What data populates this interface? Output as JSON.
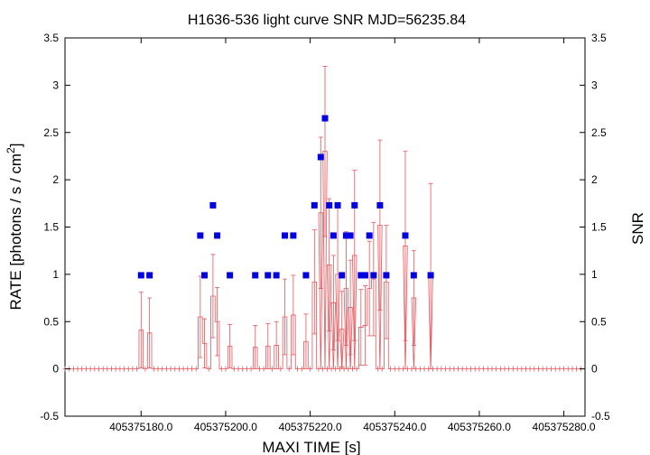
{
  "chart_data": {
    "type": "scatter",
    "title": "H1636-536 light curve  SNR MJD=56235.84",
    "xlabel": "MAXI TIME [s]",
    "ylabel_main": "RATE [photons / s / cm",
    "ylabel_sup": "2",
    "ylabel_close": "]",
    "y2label": "SNR",
    "xlim": [
      405375162,
      405375285
    ],
    "ylim": [
      -0.5,
      3.5
    ],
    "y2lim": [
      -0.5,
      3.5
    ],
    "x_ticks": [
      405375180,
      405375200,
      405375220,
      405375240,
      405375260,
      405375280
    ],
    "x_tick_labels": [
      "405375180.0",
      "405375200.0",
      "405375220.0",
      "405375240.0",
      "405375260.0",
      "405375280.0"
    ],
    "y_ticks": [
      -0.5,
      0,
      0.5,
      1,
      1.5,
      2,
      2.5,
      3,
      3.5
    ],
    "y_tick_labels": [
      "-0.5",
      "0",
      "0.5",
      "1",
      "1.5",
      "2",
      "2.5",
      "3",
      "3.5"
    ],
    "y2_tick_labels": [
      "-0.5",
      "0",
      "0.5",
      "1",
      "1.5",
      "2",
      "2.5",
      "3",
      "3.5"
    ],
    "grid": false,
    "rate_series": {
      "color": "#e8545a",
      "bin_width": 1,
      "x_start": 405375162,
      "x_end": 405375284,
      "nonzero_points": [
        {
          "x": 405375180.0,
          "y": 0.41,
          "err": 0.4
        },
        {
          "x": 405375182.0,
          "y": 0.38,
          "err": 0.37
        },
        {
          "x": 405375194.0,
          "y": 0.55,
          "err": 0.43
        },
        {
          "x": 405375195.0,
          "y": 0.27,
          "err": 0.26
        },
        {
          "x": 405375197.0,
          "y": 0.77,
          "err": 0.44
        },
        {
          "x": 405375198.0,
          "y": 0.5,
          "err": 0.36
        },
        {
          "x": 405375201.0,
          "y": 0.24,
          "err": 0.23
        },
        {
          "x": 405375207.0,
          "y": 0.23,
          "err": 0.23
        },
        {
          "x": 405375210.0,
          "y": 0.24,
          "err": 0.24
        },
        {
          "x": 405375212.0,
          "y": 0.25,
          "err": 0.25
        },
        {
          "x": 405375214.0,
          "y": 0.55,
          "err": 0.4
        },
        {
          "x": 405375216.0,
          "y": 0.57,
          "err": 0.42
        },
        {
          "x": 405375219.0,
          "y": 0.29,
          "err": 0.29
        },
        {
          "x": 405375221.0,
          "y": 0.92,
          "err": 0.55
        },
        {
          "x": 405375222.5,
          "y": 1.65,
          "err": 0.8
        },
        {
          "x": 405375223.5,
          "y": 2.3,
          "err": 0.9
        },
        {
          "x": 405375224.5,
          "y": 1.1,
          "err": 0.7
        },
        {
          "x": 405375225.5,
          "y": 0.7,
          "err": 0.5
        },
        {
          "x": 405375226.5,
          "y": 1.0,
          "err": 0.7
        },
        {
          "x": 405375227.5,
          "y": 0.42,
          "err": 0.4
        },
        {
          "x": 405375228.5,
          "y": 0.85,
          "err": 0.6
        },
        {
          "x": 405375229.5,
          "y": 0.65,
          "err": 0.5
        },
        {
          "x": 405375230.5,
          "y": 1.2,
          "err": 0.9
        },
        {
          "x": 405375232.0,
          "y": 0.44,
          "err": 0.4
        },
        {
          "x": 405375233.0,
          "y": 0.46,
          "err": 0.42
        },
        {
          "x": 405375234.0,
          "y": 0.85,
          "err": 0.5
        },
        {
          "x": 405375235.0,
          "y": 0.95,
          "err": 0.6
        },
        {
          "x": 405375236.5,
          "y": 1.52,
          "err": 0.9
        },
        {
          "x": 405375238.0,
          "y": 0.92,
          "err": 0.6
        },
        {
          "x": 405375242.5,
          "y": 1.3,
          "err": 1.0
        },
        {
          "x": 405375244.5,
          "y": 0.75,
          "err": 0.5
        },
        {
          "x": 405375248.5,
          "y": 0.98,
          "err": 0.98
        }
      ]
    },
    "snr_series": {
      "color": "#0000e0",
      "points": [
        {
          "x": 405375180.0,
          "y": 0.99
        },
        {
          "x": 405375182.0,
          "y": 0.99
        },
        {
          "x": 405375194.0,
          "y": 1.41
        },
        {
          "x": 405375195.0,
          "y": 0.99
        },
        {
          "x": 405375197.0,
          "y": 1.73
        },
        {
          "x": 405375198.0,
          "y": 1.41
        },
        {
          "x": 405375201.0,
          "y": 0.99
        },
        {
          "x": 405375207.0,
          "y": 0.99
        },
        {
          "x": 405375210.0,
          "y": 0.99
        },
        {
          "x": 405375212.0,
          "y": 0.99
        },
        {
          "x": 405375214.0,
          "y": 1.41
        },
        {
          "x": 405375216.0,
          "y": 1.41
        },
        {
          "x": 405375219.0,
          "y": 0.99
        },
        {
          "x": 405375221.0,
          "y": 1.73
        },
        {
          "x": 405375222.5,
          "y": 2.24
        },
        {
          "x": 405375223.5,
          "y": 2.65
        },
        {
          "x": 405375224.5,
          "y": 1.73
        },
        {
          "x": 405375225.5,
          "y": 1.41
        },
        {
          "x": 405375226.5,
          "y": 1.73
        },
        {
          "x": 405375227.5,
          "y": 0.99
        },
        {
          "x": 405375228.5,
          "y": 1.41
        },
        {
          "x": 405375229.5,
          "y": 1.41
        },
        {
          "x": 405375230.5,
          "y": 1.73
        },
        {
          "x": 405375232.0,
          "y": 0.99
        },
        {
          "x": 405375233.0,
          "y": 0.99
        },
        {
          "x": 405375234.0,
          "y": 1.41
        },
        {
          "x": 405375235.0,
          "y": 0.99
        },
        {
          "x": 405375236.5,
          "y": 1.73
        },
        {
          "x": 405375238.0,
          "y": 0.99
        },
        {
          "x": 405375242.5,
          "y": 1.41
        },
        {
          "x": 405375244.5,
          "y": 0.99
        },
        {
          "x": 405375248.5,
          "y": 0.99
        }
      ]
    }
  }
}
